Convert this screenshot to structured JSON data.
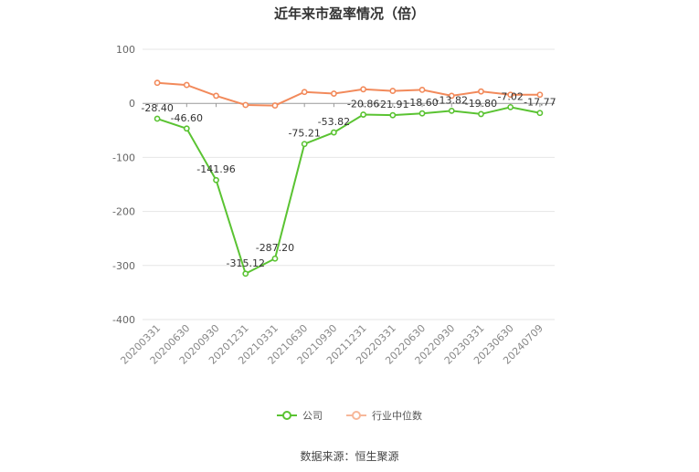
{
  "title": "近年来市盈率情况（倍）",
  "source": "数据来源：恒生聚源",
  "chart_data": {
    "type": "line",
    "categories": [
      "20200331",
      "20200630",
      "20200930",
      "20201231",
      "20210331",
      "20210630",
      "20210930",
      "20211231",
      "20220331",
      "20220630",
      "20220930",
      "20230331",
      "20230630",
      "20240709"
    ],
    "ylim": [
      -400,
      100
    ],
    "yticks": [
      100,
      0,
      -100,
      -200,
      -300,
      -400
    ],
    "grid": true,
    "legend_position": "bottom",
    "series": [
      {
        "name": "公司",
        "color": "#5ac332",
        "values": [
          -28.4,
          -46.6,
          -141.96,
          -315.12,
          -287.2,
          -75.21,
          -53.82,
          -20.86,
          -21.91,
          -18.6,
          -13.82,
          -19.8,
          -7.02,
          -17.77
        ],
        "labels": [
          "-28.40",
          "-46.60",
          "-141.96",
          "-315.12",
          "-287.20",
          "-75.21",
          "-53.82",
          "-20.86",
          "-21.91",
          "-18.60",
          "-13.82",
          "-19.80",
          "-7.02",
          "-17.77"
        ]
      },
      {
        "name": "行业中位数",
        "color": "#f28a5b",
        "values": [
          38,
          34,
          14,
          -3,
          -4,
          21,
          18,
          26,
          23,
          25,
          14,
          22,
          16,
          16
        ]
      }
    ]
  }
}
